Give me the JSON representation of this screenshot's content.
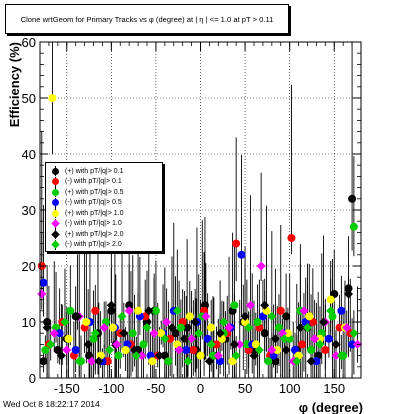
{
  "chart_data": {
    "type": "scatter",
    "title": "Clone wrtGeom for Primary Tracks vs φ (degree) at |  η | <= 1.0 at pT > 0.11",
    "xlabel": "φ (degree)",
    "ylabel": "Efficiency (%)",
    "xlim": [
      -180,
      180
    ],
    "ylim": [
      0,
      60
    ],
    "x_ticks": [
      -150,
      -100,
      -50,
      0,
      50,
      100,
      150
    ],
    "y_ticks": [
      0,
      10,
      20,
      30,
      40,
      50,
      60
    ],
    "grid": true,
    "legend_position": "left-middle",
    "series": [
      {
        "name": "(+) with pT/|q|> 0.1",
        "color": "#000000",
        "marker": "circle",
        "x": [
          -176,
          -172,
          -160,
          -150,
          -140,
          -125,
          -115,
          -108,
          -100,
          -95,
          -80,
          -70,
          -60,
          -52,
          -40,
          -28,
          -15,
          -5,
          5,
          15,
          28,
          36,
          48,
          60,
          72,
          84,
          96,
          108,
          120,
          132,
          150,
          166,
          170
        ],
        "y": [
          3,
          10,
          5,
          7,
          11,
          4,
          8,
          3,
          12,
          6,
          13,
          5,
          10,
          12,
          4,
          8,
          9,
          5,
          13,
          4,
          7,
          12,
          10,
          5,
          8,
          3,
          11,
          5,
          9,
          4,
          15,
          16,
          32
        ]
      },
      {
        "name": "(-) with pT/|q|> 0.1",
        "color": "#ff0000",
        "marker": "circle",
        "x": [
          -178,
          -170,
          -155,
          -142,
          -130,
          -118,
          -104,
          -90,
          -78,
          -62,
          -48,
          -34,
          -20,
          -8,
          4,
          18,
          30,
          40,
          54,
          66,
          78,
          90,
          102,
          114,
          126,
          140,
          156,
          168
        ],
        "y": [
          20,
          6,
          10,
          4,
          9,
          12,
          3,
          8,
          6,
          11,
          4,
          7,
          10,
          5,
          12,
          6,
          8,
          24,
          5,
          9,
          4,
          12,
          25,
          6,
          10,
          5,
          9,
          8
        ]
      },
      {
        "name": "(+) with pT/|q|> 0.5",
        "color": "#00cc00",
        "marker": "circle",
        "x": [
          -174,
          -162,
          -146,
          -134,
          -120,
          -106,
          -92,
          -76,
          -64,
          -50,
          -36,
          -22,
          -10,
          2,
          14,
          26,
          38,
          52,
          64,
          76,
          88,
          100,
          112,
          124,
          136,
          148,
          160,
          172
        ],
        "y": [
          5,
          9,
          12,
          3,
          7,
          10,
          4,
          8,
          6,
          12,
          3,
          9,
          7,
          11,
          4,
          8,
          13,
          6,
          10,
          3,
          9,
          7,
          12,
          5,
          8,
          11,
          4,
          27
        ]
      },
      {
        "name": "(-) with pT/|q|> 0.5",
        "color": "#0000ff",
        "marker": "circle",
        "x": [
          -176,
          -158,
          -140,
          -124,
          -110,
          -96,
          -82,
          -68,
          -56,
          -42,
          -30,
          -16,
          -4,
          8,
          22,
          34,
          46,
          58,
          70,
          82,
          94,
          106,
          118,
          130,
          144,
          158,
          170
        ],
        "y": [
          17,
          8,
          5,
          10,
          3,
          9,
          6,
          11,
          4,
          8,
          12,
          5,
          10,
          7,
          3,
          9,
          22,
          6,
          11,
          4,
          8,
          5,
          10,
          3,
          7,
          12,
          6
        ]
      },
      {
        "name": "(+) with pT/|q|> 1.0",
        "color": "#ffff00",
        "marker": "circle",
        "x": [
          -166,
          -148,
          -128,
          -112,
          -98,
          -84,
          -70,
          -54,
          -44,
          -26,
          -12,
          0,
          12,
          24,
          36,
          50,
          62,
          74,
          86,
          98,
          110,
          122,
          134,
          146,
          162
        ],
        "y": [
          50,
          7,
          10,
          4,
          9,
          5,
          12,
          3,
          8,
          6,
          11,
          4,
          9,
          7,
          3,
          10,
          6,
          12,
          5,
          8,
          4,
          11,
          7,
          14,
          9
        ]
      },
      {
        "name": "(-) with pT/|q|> 1.0",
        "color": "#ff00ff",
        "marker": "diamond",
        "x": [
          -178,
          -164,
          -150,
          -136,
          -122,
          -108,
          -94,
          -80,
          -66,
          -52,
          -38,
          -24,
          -10,
          6,
          20,
          32,
          44,
          56,
          68,
          80,
          92,
          104,
          116,
          128,
          140,
          152,
          164,
          176
        ],
        "y": [
          15,
          8,
          5,
          11,
          3,
          9,
          6,
          12,
          4,
          8,
          10,
          5,
          7,
          11,
          4,
          9,
          6,
          13,
          20,
          5,
          8,
          3,
          12,
          7,
          10,
          4,
          9,
          6
        ]
      },
      {
        "name": "(+) with pT/|q|> 2.0",
        "color": "#000000",
        "marker": "diamond",
        "x": [
          -172,
          -156,
          -138,
          -126,
          -114,
          -100,
          -86,
          -74,
          -58,
          -46,
          -32,
          -18,
          -6,
          10,
          22,
          38,
          50,
          60,
          72,
          84,
          96,
          112,
          124,
          138,
          152,
          166
        ],
        "y": [
          9,
          4,
          11,
          6,
          3,
          13,
          8,
          5,
          12,
          4,
          9,
          7,
          10,
          3,
          8,
          6,
          11,
          4,
          13,
          7,
          5,
          9,
          3,
          10,
          6,
          15
        ]
      },
      {
        "name": "(-) with pT/|q|> 2.0",
        "color": "#00cc00",
        "marker": "diamond",
        "x": [
          -168,
          -152,
          -136,
          -118,
          -102,
          -88,
          -72,
          -60,
          -40,
          -26,
          -14,
          -2,
          12,
          26,
          40,
          54,
          66,
          80,
          94,
          108,
          120,
          134,
          146,
          158,
          172
        ],
        "y": [
          6,
          10,
          3,
          8,
          5,
          11,
          4,
          9,
          7,
          12,
          3,
          8,
          6,
          10,
          4,
          9,
          5,
          11,
          7,
          3,
          9,
          6,
          12,
          4,
          8
        ]
      }
    ]
  },
  "footer": {
    "timestamp": "Wed Oct  8 18:22:17 2014"
  },
  "colors": {
    "background": "#ffffff",
    "grid": "#000000",
    "error_bar": "#000000"
  }
}
